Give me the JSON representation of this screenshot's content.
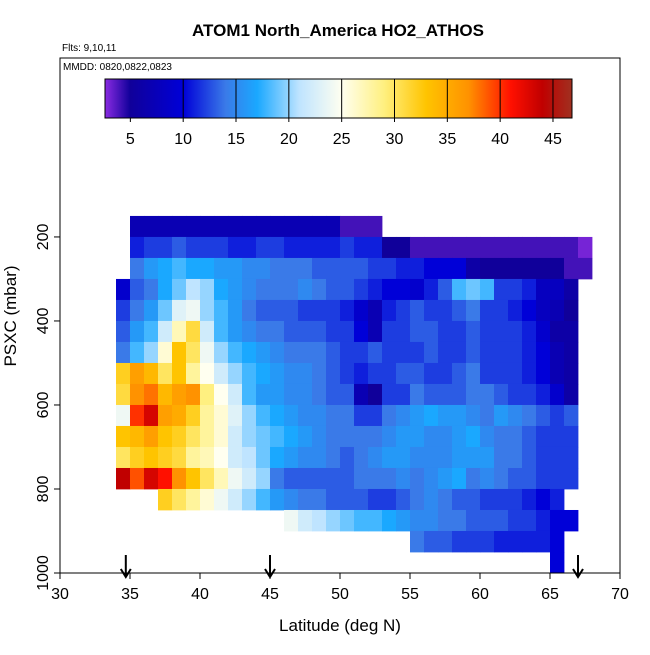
{
  "chart_data": {
    "type": "heatmap",
    "title": "ATOM1 North_America HO2_ATHOS",
    "subtitle": "Flts: 9,10,11",
    "annotation": "MMDD: 0820,0822,0823",
    "x_label": "Latitude (deg N)",
    "y_label": "PSXC (mbar)",
    "xlim": [
      30,
      70
    ],
    "xticks": [
      30,
      35,
      40,
      45,
      50,
      55,
      60,
      65,
      70
    ],
    "ylim": [
      1000,
      -226
    ],
    "yticks": [
      200,
      400,
      600,
      800,
      1000
    ],
    "arrows": [
      34.7,
      45,
      67
    ],
    "xbins": [
      34,
      35,
      36,
      37,
      38,
      39,
      40,
      41,
      42,
      43,
      44,
      45,
      46,
      47,
      48,
      49,
      50,
      51,
      52,
      53,
      54,
      55,
      56,
      57,
      58,
      59,
      60,
      61,
      62,
      63,
      64,
      65,
      66,
      67,
      68
    ],
    "ybins": [
      150,
      200,
      250,
      300,
      350,
      400,
      450,
      500,
      550,
      600,
      650,
      700,
      750,
      800,
      850,
      900,
      950,
      1000
    ],
    "z": [
      [
        null,
        7,
        7,
        7,
        7,
        7,
        7,
        7,
        7,
        7,
        7,
        7,
        7,
        7,
        7,
        7,
        4,
        4,
        4,
        null,
        null,
        null,
        null,
        null,
        null,
        null,
        null,
        null,
        null,
        null,
        null,
        null,
        null,
        null
      ],
      [
        null,
        11,
        12,
        12,
        13,
        12,
        12,
        12,
        11,
        11,
        12,
        12,
        11,
        11,
        11,
        11,
        12,
        11,
        11,
        5,
        5,
        4,
        4,
        4,
        4,
        4,
        4,
        4,
        4,
        4,
        4,
        4,
        4,
        3
      ],
      [
        null,
        14,
        16,
        17,
        18,
        17,
        17,
        16,
        16,
        15,
        15,
        14,
        14,
        14,
        13,
        13,
        13,
        13,
        12,
        12,
        11,
        11,
        10,
        10,
        10,
        6,
        5,
        5,
        5,
        5,
        5,
        5,
        4,
        4
      ],
      [
        9,
        13,
        14,
        17,
        19,
        21,
        20,
        17,
        16,
        15,
        14,
        14,
        14,
        15,
        14,
        13,
        13,
        12,
        11,
        10,
        10,
        9,
        11,
        13,
        18,
        19,
        18,
        12,
        12,
        11,
        8,
        8,
        6,
        null
      ],
      [
        12,
        14,
        16,
        19,
        23,
        24,
        20,
        18,
        16,
        14,
        13,
        13,
        13,
        12,
        12,
        12,
        11,
        9,
        7,
        11,
        12,
        13,
        12,
        12,
        13,
        14,
        12,
        12,
        11,
        10,
        8,
        7,
        5,
        null
      ],
      [
        13,
        16,
        18,
        22,
        27,
        31,
        22,
        18,
        16,
        15,
        14,
        14,
        13,
        13,
        13,
        12,
        12,
        10,
        7,
        12,
        12,
        13,
        13,
        12,
        12,
        13,
        12,
        12,
        12,
        11,
        9,
        6,
        6,
        null
      ],
      [
        14,
        18,
        20,
        26,
        33,
        30,
        24,
        20,
        18,
        17,
        16,
        15,
        14,
        14,
        14,
        13,
        12,
        12,
        13,
        12,
        12,
        12,
        13,
        12,
        12,
        13,
        12,
        12,
        12,
        11,
        10,
        7,
        6,
        null
      ],
      [
        32,
        36,
        34,
        30,
        33,
        28,
        25,
        22,
        20,
        18,
        17,
        16,
        15,
        15,
        14,
        13,
        12,
        11,
        12,
        12,
        13,
        13,
        12,
        12,
        13,
        14,
        12,
        12,
        12,
        11,
        10,
        7,
        6,
        null
      ],
      [
        31,
        37,
        38,
        34,
        36,
        37,
        29,
        25,
        22,
        18,
        16,
        16,
        15,
        15,
        14,
        13,
        13,
        7,
        5,
        12,
        12,
        14,
        13,
        13,
        13,
        14,
        14,
        13,
        12,
        12,
        11,
        9,
        6,
        null
      ],
      [
        24,
        40,
        43,
        36,
        35,
        32,
        28,
        26,
        23,
        20,
        18,
        17,
        16,
        15,
        15,
        14,
        14,
        12,
        12,
        14,
        15,
        16,
        17,
        16,
        16,
        15,
        14,
        16,
        15,
        14,
        13,
        12,
        13,
        null
      ],
      [
        33,
        34,
        36,
        33,
        32,
        30,
        28,
        26,
        22,
        20,
        19,
        18,
        17,
        16,
        15,
        14,
        14,
        14,
        14,
        15,
        16,
        16,
        15,
        15,
        16,
        17,
        15,
        14,
        14,
        13,
        12,
        12,
        12,
        null
      ],
      [
        30,
        32,
        33,
        32,
        31,
        28,
        27,
        25,
        22,
        21,
        19,
        17,
        16,
        15,
        15,
        14,
        13,
        14,
        15,
        16,
        16,
        15,
        15,
        15,
        16,
        16,
        16,
        14,
        14,
        13,
        12,
        12,
        12,
        null
      ],
      [
        44,
        39,
        43,
        41,
        37,
        33,
        30,
        27,
        24,
        22,
        20,
        14,
        13,
        13,
        13,
        13,
        13,
        14,
        14,
        14,
        15,
        14,
        15,
        16,
        17,
        14,
        15,
        14,
        13,
        13,
        12,
        12,
        12,
        null
      ],
      [
        null,
        null,
        null,
        32,
        30,
        28,
        26,
        24,
        22,
        20,
        18,
        16,
        15,
        14,
        14,
        13,
        13,
        13,
        12,
        12,
        13,
        14,
        15,
        14,
        13,
        13,
        12,
        12,
        12,
        11,
        10,
        11,
        null,
        null
      ],
      [
        null,
        null,
        null,
        null,
        null,
        null,
        null,
        null,
        null,
        null,
        null,
        null,
        24,
        22,
        21,
        20,
        19,
        18,
        18,
        17,
        16,
        15,
        15,
        14,
        14,
        13,
        13,
        13,
        12,
        12,
        11,
        10,
        10,
        null
      ],
      [
        null,
        null,
        null,
        null,
        null,
        null,
        null,
        null,
        null,
        null,
        null,
        null,
        null,
        null,
        null,
        null,
        null,
        null,
        null,
        null,
        null,
        14,
        13,
        13,
        12,
        12,
        12,
        11,
        11,
        11,
        11,
        10,
        null,
        null
      ],
      [
        null,
        null,
        null,
        null,
        null,
        null,
        null,
        null,
        null,
        null,
        null,
        null,
        null,
        null,
        null,
        null,
        null,
        null,
        null,
        null,
        null,
        null,
        null,
        null,
        null,
        null,
        null,
        null,
        null,
        null,
        null,
        10,
        null,
        null
      ]
    ],
    "colorbar": {
      "lim": [
        2.6,
        46.8
      ],
      "ticks": [
        5,
        10,
        15,
        20,
        25,
        30,
        35,
        40,
        45
      ],
      "stops": [
        [
          2.6,
          "#8a2be2"
        ],
        [
          5,
          "#10009a"
        ],
        [
          10,
          "#0000d8"
        ],
        [
          14,
          "#3a7ae8"
        ],
        [
          17,
          "#1aa8ff"
        ],
        [
          21,
          "#bfe4ff"
        ],
        [
          25,
          "#fffff0"
        ],
        [
          29,
          "#fff080"
        ],
        [
          33,
          "#ffc400"
        ],
        [
          37,
          "#ff9200"
        ],
        [
          41,
          "#ff1000"
        ],
        [
          44,
          "#c00000"
        ],
        [
          46.8,
          "#a03020"
        ]
      ]
    }
  }
}
